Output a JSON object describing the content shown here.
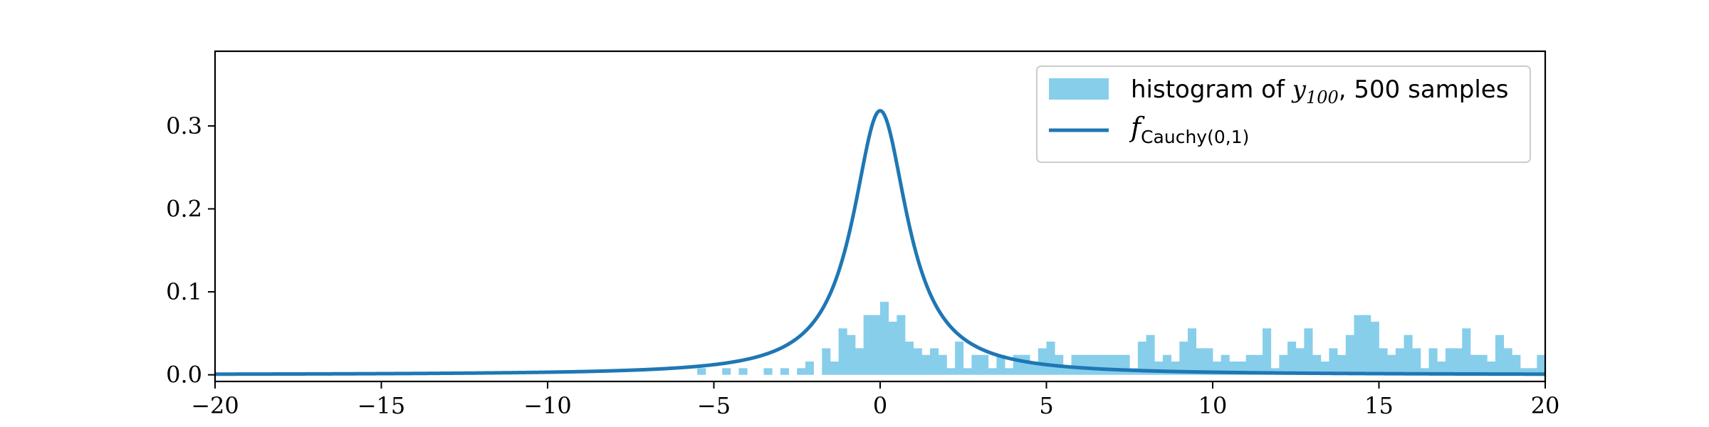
{
  "chart_data": {
    "type": "bar",
    "title": "",
    "xlabel": "",
    "ylabel": "",
    "xlim": [
      -20,
      20
    ],
    "ylim": [
      -0.008,
      0.39
    ],
    "xticks": [
      -20,
      -15,
      -10,
      -5,
      0,
      5,
      10,
      15,
      20
    ],
    "yticks": [
      0.0,
      0.1,
      0.2,
      0.3
    ],
    "xtick_labels": [
      "−20",
      "−15",
      "−10",
      "−5",
      "0",
      "5",
      "10",
      "15",
      "20"
    ],
    "ytick_labels": [
      "0.0",
      "0.1",
      "0.2",
      "0.3"
    ],
    "grid": false,
    "legend_position": "top-right",
    "colors": {
      "histogram": "#87ceeb",
      "curve": "#1f77b4"
    },
    "histogram": {
      "name_prefix": "histogram of ",
      "name_var": "y",
      "name_sub": "100",
      "name_suffix": ", 500 samples",
      "bin_width": 0.25,
      "bars": [
        [
          -5.5,
          0.008
        ],
        [
          -4.75,
          0.008
        ],
        [
          -4.25,
          0.008
        ],
        [
          -3.5,
          0.008
        ],
        [
          -3.0,
          0.008
        ],
        [
          -2.5,
          0.008
        ],
        [
          -2.25,
          0.016
        ],
        [
          -1.75,
          0.032
        ],
        [
          -1.5,
          0.016
        ],
        [
          -1.25,
          0.056
        ],
        [
          -1.0,
          0.048
        ],
        [
          -0.75,
          0.032
        ],
        [
          -0.5,
          0.072
        ],
        [
          -0.25,
          0.072
        ],
        [
          0.0,
          0.088
        ],
        [
          0.25,
          0.064
        ],
        [
          0.5,
          0.072
        ],
        [
          0.75,
          0.04
        ],
        [
          1.0,
          0.032
        ],
        [
          1.25,
          0.024
        ],
        [
          1.5,
          0.032
        ],
        [
          1.75,
          0.024
        ],
        [
          2.0,
          0.008
        ],
        [
          2.25,
          0.04
        ],
        [
          2.5,
          0.008
        ],
        [
          2.75,
          0.024
        ],
        [
          3.0,
          0.024
        ],
        [
          3.25,
          0.008
        ],
        [
          3.5,
          0.024
        ],
        [
          3.75,
          0.008
        ],
        [
          4.0,
          0.024
        ],
        [
          4.25,
          0.024
        ],
        [
          4.5,
          0.016
        ],
        [
          4.75,
          0.032
        ],
        [
          5.0,
          0.04
        ],
        [
          5.25,
          0.024
        ],
        [
          5.5,
          0.008
        ],
        [
          5.75,
          0.024
        ],
        [
          6.0,
          0.024
        ],
        [
          6.25,
          0.024
        ],
        [
          6.5,
          0.024
        ],
        [
          6.75,
          0.024
        ],
        [
          7.0,
          0.024
        ],
        [
          7.25,
          0.024
        ],
        [
          7.5,
          0.008
        ],
        [
          7.75,
          0.04
        ],
        [
          8.0,
          0.048
        ],
        [
          8.25,
          0.016
        ],
        [
          8.5,
          0.024
        ],
        [
          8.75,
          0.016
        ],
        [
          9.0,
          0.04
        ],
        [
          9.25,
          0.056
        ],
        [
          9.5,
          0.032
        ],
        [
          9.75,
          0.032
        ],
        [
          10.0,
          0.016
        ],
        [
          10.25,
          0.024
        ],
        [
          10.5,
          0.016
        ],
        [
          10.75,
          0.016
        ],
        [
          11.0,
          0.024
        ],
        [
          11.25,
          0.024
        ],
        [
          11.5,
          0.056
        ],
        [
          11.75,
          0.008
        ],
        [
          12.0,
          0.024
        ],
        [
          12.25,
          0.04
        ],
        [
          12.5,
          0.032
        ],
        [
          12.75,
          0.056
        ],
        [
          13.0,
          0.024
        ],
        [
          13.25,
          0.016
        ],
        [
          13.5,
          0.032
        ],
        [
          13.75,
          0.024
        ],
        [
          14.0,
          0.048
        ],
        [
          14.25,
          0.072
        ],
        [
          14.5,
          0.072
        ],
        [
          14.75,
          0.064
        ],
        [
          15.0,
          0.032
        ],
        [
          15.25,
          0.024
        ],
        [
          15.5,
          0.032
        ],
        [
          15.75,
          0.048
        ],
        [
          16.0,
          0.032
        ],
        [
          16.25,
          0.008
        ],
        [
          16.5,
          0.032
        ],
        [
          16.75,
          0.016
        ],
        [
          17.0,
          0.032
        ],
        [
          17.25,
          0.032
        ],
        [
          17.5,
          0.056
        ],
        [
          17.75,
          0.024
        ],
        [
          18.0,
          0.024
        ],
        [
          18.25,
          0.016
        ],
        [
          18.5,
          0.048
        ],
        [
          18.75,
          0.032
        ],
        [
          19.0,
          0.024
        ],
        [
          19.25,
          0.008
        ],
        [
          19.5,
          0.008
        ],
        [
          19.75,
          0.024
        ]
      ]
    },
    "curve": {
      "name_var": "f",
      "name_sub": "Cauchy(0,1)",
      "location": 0,
      "scale": 1
    }
  }
}
